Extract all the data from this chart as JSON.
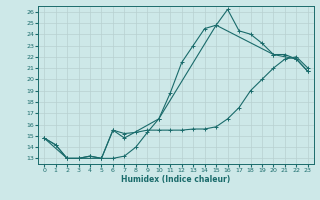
{
  "xlabel": "Humidex (Indice chaleur)",
  "xlim_min": -0.5,
  "xlim_max": 23.5,
  "ylim_min": 12.5,
  "ylim_max": 26.5,
  "yticks": [
    13,
    14,
    15,
    16,
    17,
    18,
    19,
    20,
    21,
    22,
    23,
    24,
    25,
    26
  ],
  "xticks": [
    0,
    1,
    2,
    3,
    4,
    5,
    6,
    7,
    8,
    9,
    10,
    11,
    12,
    13,
    14,
    15,
    16,
    17,
    18,
    19,
    20,
    21,
    22,
    23
  ],
  "bg_color": "#cde8e8",
  "line_color": "#1a6b6b",
  "grid_color": "#b8d0d0",
  "lines": [
    {
      "x": [
        0,
        1,
        2,
        3,
        4,
        5,
        6,
        7,
        8,
        9,
        10,
        11,
        12,
        13,
        14,
        15,
        16,
        17,
        18,
        19,
        20,
        21,
        22,
        23
      ],
      "y": [
        14.8,
        14.2,
        13.0,
        13.0,
        13.2,
        13.0,
        13.0,
        13.2,
        14.0,
        15.3,
        16.5,
        18.8,
        21.5,
        23.0,
        24.5,
        24.8,
        26.2,
        24.3,
        24.0,
        23.2,
        22.2,
        22.2,
        21.8,
        20.7
      ]
    },
    {
      "x": [
        0,
        1,
        2,
        3,
        4,
        5,
        6,
        7,
        8,
        9,
        10,
        11,
        12,
        13,
        14,
        15,
        16,
        17,
        18,
        19,
        20,
        21,
        22,
        23
      ],
      "y": [
        14.8,
        14.2,
        13.0,
        13.0,
        13.2,
        13.0,
        15.5,
        15.2,
        15.3,
        15.5,
        15.5,
        15.5,
        15.5,
        15.6,
        15.6,
        15.8,
        16.5,
        17.5,
        19.0,
        20.0,
        21.0,
        21.8,
        22.0,
        21.0
      ]
    },
    {
      "x": [
        0,
        2,
        3,
        5,
        6,
        7,
        10,
        15,
        20,
        22,
        23
      ],
      "y": [
        14.8,
        13.0,
        13.0,
        13.0,
        15.5,
        14.8,
        16.5,
        24.8,
        22.2,
        21.8,
        20.7
      ]
    }
  ]
}
